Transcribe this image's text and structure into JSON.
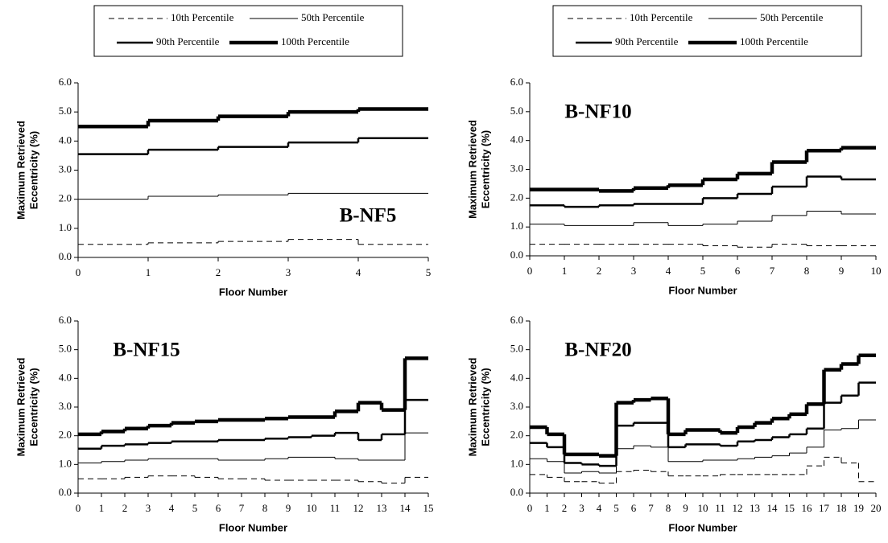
{
  "chart_data": [
    {
      "type": "step",
      "annotation": "B-NF5",
      "annotation_corner": "lower-right",
      "legend": "above",
      "xlabel": "Floor Number",
      "ylabel": [
        "Maximum Retrieved",
        "Eccentricity (%)"
      ],
      "x": [
        0,
        1,
        2,
        3,
        4
      ],
      "xlim": [
        0,
        5
      ],
      "xticks": [
        0,
        1,
        2,
        3,
        4,
        5
      ],
      "ylim": [
        0,
        6
      ],
      "yticks": [
        {
          "value": 0,
          "label": "0.0"
        },
        {
          "value": 1,
          "label": "1.0"
        },
        {
          "value": 2,
          "label": "2.0"
        },
        {
          "value": 3,
          "label": "3.0"
        },
        {
          "value": 4,
          "label": "4.0"
        },
        {
          "value": 5,
          "label": "5.0"
        },
        {
          "value": 6,
          "label": "6.0"
        }
      ],
      "series": [
        {
          "name": "10th Percentile",
          "color": "#000000",
          "linestyle": "dashed",
          "linewidth": 1,
          "values": [
            0.45,
            0.5,
            0.55,
            0.62,
            0.45
          ]
        },
        {
          "name": "50th Percentile",
          "color": "#000000",
          "linestyle": "solid",
          "linewidth": 1,
          "values": [
            2.0,
            2.1,
            2.15,
            2.2,
            2.2
          ]
        },
        {
          "name": "90th Percentile",
          "color": "#000000",
          "linestyle": "solid",
          "linewidth": 2.5,
          "values": [
            3.55,
            3.7,
            3.8,
            3.95,
            4.1
          ]
        },
        {
          "name": "100th Percentile",
          "color": "#000000",
          "linestyle": "solid",
          "linewidth": 4.5,
          "values": [
            4.5,
            4.7,
            4.85,
            5.0,
            5.1
          ]
        }
      ]
    },
    {
      "type": "step",
      "annotation": "B-NF10",
      "annotation_corner": "upper-left",
      "legend": "above",
      "xlabel": "Floor Number",
      "ylabel": [
        "Maximum Retrieved",
        "Eccentricity (%)"
      ],
      "x": [
        0,
        1,
        2,
        3,
        4,
        5,
        6,
        7,
        8,
        9
      ],
      "xlim": [
        0,
        10
      ],
      "xticks": [
        0,
        1,
        2,
        3,
        4,
        5,
        6,
        7,
        8,
        9,
        10
      ],
      "ylim": [
        0,
        6
      ],
      "yticks": [
        {
          "value": 0,
          "label": "0.0"
        },
        {
          "value": 1,
          "label": "1.0"
        },
        {
          "value": 2,
          "label": "2.0"
        },
        {
          "value": 3,
          "label": "3.0"
        },
        {
          "value": 4,
          "label": "4.0"
        },
        {
          "value": 5,
          "label": "5.0"
        },
        {
          "value": 6,
          "label": "6.0"
        }
      ],
      "series": [
        {
          "name": "10th Percentile",
          "color": "#000000",
          "linestyle": "dashed",
          "linewidth": 1,
          "values": [
            0.4,
            0.4,
            0.4,
            0.4,
            0.4,
            0.35,
            0.3,
            0.4,
            0.35,
            0.35
          ]
        },
        {
          "name": "50th Percentile",
          "color": "#000000",
          "linestyle": "solid",
          "linewidth": 1,
          "values": [
            1.1,
            1.05,
            1.05,
            1.15,
            1.05,
            1.1,
            1.2,
            1.4,
            1.55,
            1.45
          ]
        },
        {
          "name": "90th Percentile",
          "color": "#000000",
          "linestyle": "solid",
          "linewidth": 2.5,
          "values": [
            1.75,
            1.7,
            1.75,
            1.8,
            1.8,
            2.0,
            2.15,
            2.4,
            2.75,
            2.65
          ]
        },
        {
          "name": "100th Percentile",
          "color": "#000000",
          "linestyle": "solid",
          "linewidth": 4.5,
          "values": [
            2.3,
            2.3,
            2.25,
            2.35,
            2.45,
            2.65,
            2.85,
            3.25,
            3.65,
            3.75
          ]
        }
      ]
    },
    {
      "type": "step",
      "annotation": "B-NF15",
      "annotation_corner": "upper-left",
      "xlabel": "Floor Number",
      "ylabel": [
        "Maximum Retrieved",
        "Eccentricity (%)"
      ],
      "x": [
        0,
        1,
        2,
        3,
        4,
        5,
        6,
        7,
        8,
        9,
        10,
        11,
        12,
        13,
        14
      ],
      "xlim": [
        0,
        15
      ],
      "xticks": [
        0,
        1,
        2,
        3,
        4,
        5,
        6,
        7,
        8,
        9,
        10,
        11,
        12,
        13,
        14,
        15
      ],
      "ylim": [
        0,
        6
      ],
      "yticks": [
        {
          "value": 0,
          "label": "0.0"
        },
        {
          "value": 1,
          "label": "1.0"
        },
        {
          "value": 2,
          "label": "2.0"
        },
        {
          "value": 3,
          "label": "3.0"
        },
        {
          "value": 4,
          "label": "4.0"
        },
        {
          "value": 5,
          "label": "5.0"
        },
        {
          "value": 6,
          "label": "6.0"
        }
      ],
      "series": [
        {
          "name": "10th Percentile",
          "color": "#000000",
          "linestyle": "dashed",
          "linewidth": 1,
          "values": [
            0.5,
            0.5,
            0.55,
            0.6,
            0.6,
            0.55,
            0.5,
            0.5,
            0.45,
            0.45,
            0.45,
            0.45,
            0.4,
            0.35,
            0.55
          ]
        },
        {
          "name": "50th Percentile",
          "color": "#000000",
          "linestyle": "solid",
          "linewidth": 1,
          "values": [
            1.05,
            1.1,
            1.15,
            1.2,
            1.2,
            1.2,
            1.15,
            1.15,
            1.2,
            1.25,
            1.25,
            1.2,
            1.15,
            1.15,
            2.1
          ]
        },
        {
          "name": "90th Percentile",
          "color": "#000000",
          "linestyle": "solid",
          "linewidth": 2.5,
          "values": [
            1.55,
            1.65,
            1.7,
            1.75,
            1.8,
            1.8,
            1.85,
            1.85,
            1.9,
            1.95,
            2.0,
            2.1,
            1.85,
            2.05,
            3.25
          ]
        },
        {
          "name": "100th Percentile",
          "color": "#000000",
          "linestyle": "solid",
          "linewidth": 4.5,
          "values": [
            2.05,
            2.15,
            2.25,
            2.35,
            2.45,
            2.5,
            2.55,
            2.55,
            2.6,
            2.65,
            2.65,
            2.85,
            3.15,
            2.9,
            4.7
          ]
        }
      ]
    },
    {
      "type": "step",
      "annotation": "B-NF20",
      "annotation_corner": "upper-left",
      "xlabel": "Floor Number",
      "ylabel": [
        "Maximum Retrieved",
        "Eccentricity (%)"
      ],
      "x": [
        0,
        1,
        2,
        3,
        4,
        5,
        6,
        7,
        8,
        9,
        10,
        11,
        12,
        13,
        14,
        15,
        16,
        17,
        18,
        19
      ],
      "xlim": [
        0,
        20
      ],
      "xticks": [
        0,
        1,
        2,
        3,
        4,
        5,
        6,
        7,
        8,
        9,
        10,
        11,
        12,
        13,
        14,
        15,
        16,
        17,
        18,
        19,
        20
      ],
      "ylim": [
        0,
        6
      ],
      "yticks": [
        {
          "value": 0,
          "label": "0.0"
        },
        {
          "value": 1,
          "label": "1.0"
        },
        {
          "value": 2,
          "label": "2.0"
        },
        {
          "value": 3,
          "label": "3.0"
        },
        {
          "value": 4,
          "label": "4.0"
        },
        {
          "value": 5,
          "label": "5.0"
        },
        {
          "value": 6,
          "label": "6.0"
        }
      ],
      "series": [
        {
          "name": "10th Percentile",
          "color": "#000000",
          "linestyle": "dashed",
          "linewidth": 1,
          "values": [
            0.65,
            0.55,
            0.4,
            0.4,
            0.35,
            0.75,
            0.8,
            0.75,
            0.6,
            0.6,
            0.6,
            0.65,
            0.65,
            0.65,
            0.65,
            0.65,
            0.95,
            1.25,
            1.05,
            0.4
          ]
        },
        {
          "name": "50th Percentile",
          "color": "#000000",
          "linestyle": "solid",
          "linewidth": 1,
          "values": [
            1.2,
            1.1,
            0.7,
            0.75,
            0.7,
            1.55,
            1.65,
            1.6,
            1.1,
            1.1,
            1.15,
            1.15,
            1.2,
            1.25,
            1.3,
            1.4,
            1.6,
            2.2,
            2.25,
            2.55
          ]
        },
        {
          "name": "90th Percentile",
          "color": "#000000",
          "linestyle": "solid",
          "linewidth": 2.5,
          "values": [
            1.75,
            1.6,
            1.05,
            1.0,
            0.95,
            2.35,
            2.45,
            2.45,
            1.6,
            1.7,
            1.7,
            1.65,
            1.8,
            1.85,
            1.95,
            2.05,
            2.25,
            3.15,
            3.4,
            3.85
          ]
        },
        {
          "name": "100th Percentile",
          "color": "#000000",
          "linestyle": "solid",
          "linewidth": 4.5,
          "values": [
            2.3,
            2.05,
            1.35,
            1.35,
            1.3,
            3.15,
            3.25,
            3.3,
            2.05,
            2.2,
            2.2,
            2.1,
            2.3,
            2.45,
            2.6,
            2.75,
            3.1,
            4.3,
            4.5,
            4.8
          ]
        }
      ]
    }
  ]
}
